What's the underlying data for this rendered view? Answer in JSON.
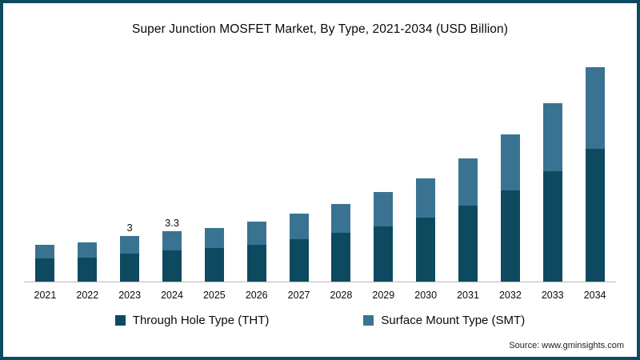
{
  "frame": {
    "border_color": "#0e4a5f",
    "background": "#ffffff"
  },
  "chart_data": {
    "type": "bar",
    "stacked": true,
    "title": "Super Junction MOSFET Market, By Type, 2021-2034 (USD Billion)",
    "xlabel": "",
    "ylabel": "",
    "ylim": [
      0,
      15
    ],
    "grid": false,
    "legend_position": "bottom",
    "categories": [
      "2021",
      "2022",
      "2023",
      "2024",
      "2025",
      "2026",
      "2027",
      "2028",
      "2029",
      "2030",
      "2031",
      "2032",
      "2033",
      "2034"
    ],
    "series": [
      {
        "name": "Through Hole Type (THT)",
        "color": "#0e4a5f",
        "values": [
          1.5,
          1.6,
          1.85,
          2.05,
          2.2,
          2.4,
          2.8,
          3.2,
          3.65,
          4.2,
          5.0,
          6.0,
          7.25,
          8.75
        ]
      },
      {
        "name": "Surface Mount Type (SMT)",
        "color": "#3a7392",
        "values": [
          0.9,
          1.0,
          1.15,
          1.25,
          1.3,
          1.5,
          1.7,
          1.9,
          2.25,
          2.6,
          3.1,
          3.7,
          4.45,
          5.35
        ]
      }
    ],
    "totals": [
      2.4,
      2.6,
      3.0,
      3.3,
      3.5,
      3.9,
      4.5,
      5.1,
      5.9,
      6.8,
      8.1,
      9.7,
      11.7,
      14.1
    ],
    "bar_labels": {
      "2023": "3",
      "2024": "3.3"
    }
  },
  "source": {
    "text": "Source: www.gminsights.com"
  }
}
